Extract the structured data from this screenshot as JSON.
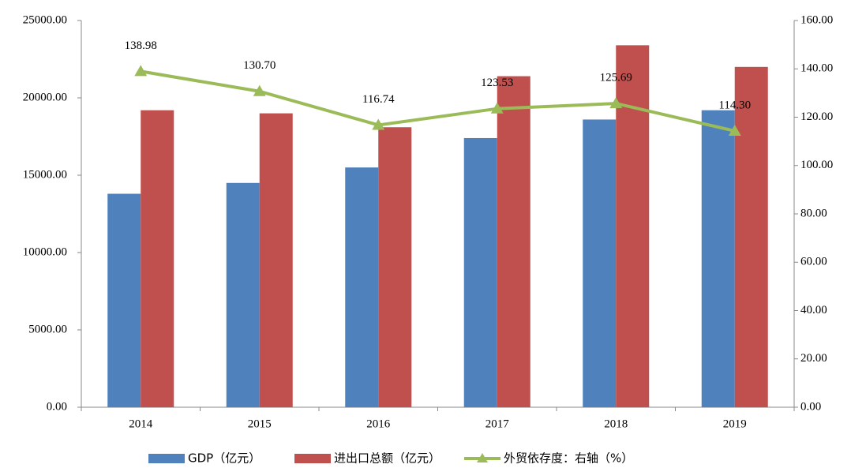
{
  "chart_data": {
    "type": "bar-line",
    "categories": [
      "2014",
      "2015",
      "2016",
      "2017",
      "2018",
      "2019"
    ],
    "series": [
      {
        "name": "GDP（亿元）",
        "type": "bar",
        "color": "#4f81bd",
        "values": [
          13800,
          14500,
          15500,
          17400,
          18600,
          19200
        ]
      },
      {
        "name": "进出口总额（亿元）",
        "type": "bar",
        "color": "#c0504d",
        "values": [
          19200,
          19000,
          18100,
          21400,
          23400,
          22000
        ]
      },
      {
        "name": "外贸依存度：右轴（%）",
        "type": "line",
        "axis": "y2",
        "color": "#9bbb59",
        "values": [
          138.98,
          130.7,
          116.74,
          123.53,
          125.69,
          114.3
        ],
        "value_labels": [
          "138.98",
          "130.70",
          "116.74",
          "123.53",
          "125.69",
          "114.30"
        ]
      }
    ],
    "ylim": [
      0,
      25000
    ],
    "yticks": [
      {
        "value": 0,
        "label": "0.00"
      },
      {
        "value": 5000,
        "label": "5000.00"
      },
      {
        "value": 10000,
        "label": "10000.00"
      },
      {
        "value": 15000,
        "label": "15000.00"
      },
      {
        "value": 20000,
        "label": "20000.00"
      },
      {
        "value": 25000,
        "label": "25000.00"
      }
    ],
    "y2lim": [
      0,
      160
    ],
    "y2ticks": [
      {
        "value": 0,
        "label": "0.00"
      },
      {
        "value": 20,
        "label": "20.00"
      },
      {
        "value": 40,
        "label": "40.00"
      },
      {
        "value": 60,
        "label": "60.00"
      },
      {
        "value": 80,
        "label": "80.00"
      },
      {
        "value": 100,
        "label": "100.00"
      },
      {
        "value": 120,
        "label": "120.00"
      },
      {
        "value": 140,
        "label": "140.00"
      },
      {
        "value": 160,
        "label": "160.00"
      }
    ],
    "legend": "bottom"
  }
}
